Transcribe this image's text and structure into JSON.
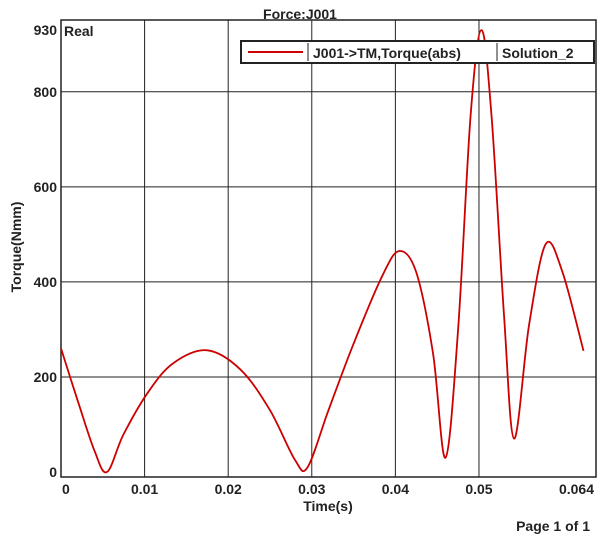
{
  "chart_data": {
    "type": "line",
    "title": "Force:J001",
    "xlabel": "Time(s)",
    "ylabel": "Torque(Nmm)",
    "corner_label": "Real",
    "xlim": [
      0,
      0.064
    ],
    "ylim": [
      0,
      930
    ],
    "x_ticks": [
      {
        "value": 0,
        "label": "0"
      },
      {
        "value": 0.01,
        "label": "0.01"
      },
      {
        "value": 0.02,
        "label": "0.02"
      },
      {
        "value": 0.03,
        "label": "0.03"
      },
      {
        "value": 0.04,
        "label": "0.04"
      },
      {
        "value": 0.05,
        "label": "0.05"
      },
      {
        "value": 0.064,
        "label": "0.064"
      }
    ],
    "y_ticks": [
      {
        "value": 0,
        "label": "0"
      },
      {
        "value": 200,
        "label": "200"
      },
      {
        "value": 400,
        "label": "400"
      },
      {
        "value": 600,
        "label": "600"
      },
      {
        "value": 800,
        "label": "800"
      },
      {
        "value": 930,
        "label": "930"
      }
    ],
    "grid": true,
    "legend_position": "top-right",
    "series": [
      {
        "name": "J001->TM,Torque(abs)",
        "solution": "Solution_2",
        "color": "#cc0000",
        "x": [
          0,
          0.002,
          0.004,
          0.0055,
          0.0075,
          0.0105,
          0.0135,
          0.0175,
          0.0215,
          0.025,
          0.028,
          0.0295,
          0.032,
          0.035,
          0.0385,
          0.0405,
          0.0425,
          0.0445,
          0.046,
          0.0475,
          0.049,
          0.0503,
          0.0515,
          0.053,
          0.0542,
          0.056,
          0.058,
          0.06,
          0.0625
        ],
        "y": [
          260,
          150,
          45,
          0,
          80,
          170,
          230,
          256,
          215,
          130,
          25,
          10,
          130,
          270,
          415,
          465,
          420,
          250,
          30,
          300,
          750,
          930,
          750,
          330,
          70,
          310,
          480,
          420,
          255
        ]
      }
    ]
  },
  "footer": {
    "page_text": "Page 1 of 1"
  }
}
